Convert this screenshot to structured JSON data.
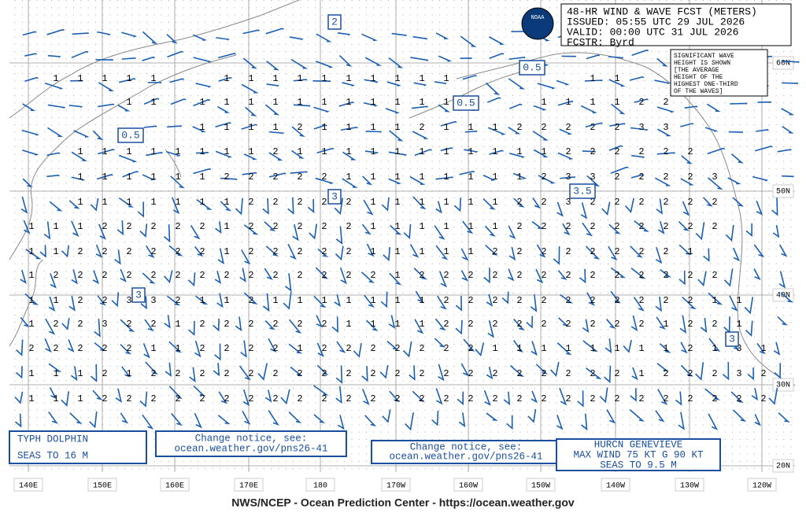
{
  "header": {
    "lines": [
      "48-HR WIND & WAVE FCST (METERS)",
      "ISSUED: 05:55 UTC 29 JUL 2026",
      "VALID:  00:00 UTC 31 JUL 2026",
      "FCSTR:  Byrd"
    ]
  },
  "logo": "NOAA",
  "legend_note": [
    "SIGNIFICANT WAVE",
    "HEIGHT IS SHOWN",
    "[THE AVERAGE",
    "HEIGHT OF THE",
    "HIGHEST ONE-THIRD",
    "OF THE WAVES]"
  ],
  "contour_labels": [
    2,
    0.5,
    0.5,
    0.5,
    3,
    3.5,
    3,
    3
  ],
  "longitudes": [
    "140E",
    "150E",
    "160E",
    "170E",
    "180",
    "170W",
    "160W",
    "150W",
    "140W",
    "130W",
    "120W"
  ],
  "latitudes": [
    "60N",
    "50N",
    "40N",
    "30N",
    "20N"
  ],
  "wave_heights": [
    [
      null,
      1,
      1,
      1,
      1,
      1,
      null,
      null,
      1,
      1,
      1,
      1,
      1,
      1,
      1,
      1,
      1,
      1,
      null,
      null,
      null,
      null,
      null,
      1,
      1,
      null,
      null,
      null,
      null,
      null,
      null
    ],
    [
      null,
      null,
      null,
      null,
      1,
      1,
      null,
      1,
      1,
      1,
      1,
      1,
      1,
      1,
      1,
      1,
      1,
      1,
      1,
      null,
      null,
      1,
      1,
      1,
      1,
      2,
      2,
      null,
      null,
      null,
      null
    ],
    [
      null,
      null,
      null,
      null,
      null,
      null,
      null,
      1,
      1,
      1,
      1,
      2,
      1,
      1,
      1,
      1,
      2,
      1,
      1,
      1,
      2,
      2,
      2,
      2,
      2,
      3,
      3,
      null,
      null,
      null,
      null
    ],
    [
      null,
      null,
      1,
      1,
      1,
      1,
      1,
      1,
      1,
      1,
      2,
      1,
      1,
      1,
      1,
      1,
      1,
      1,
      1,
      1,
      1,
      1,
      2,
      2,
      2,
      2,
      2,
      2,
      null,
      null,
      null
    ],
    [
      null,
      null,
      1,
      1,
      1,
      1,
      1,
      1,
      2,
      2,
      2,
      2,
      2,
      1,
      1,
      1,
      1,
      1,
      1,
      1,
      1,
      2,
      3,
      3,
      2,
      2,
      2,
      2,
      3,
      null,
      null
    ],
    [
      null,
      null,
      1,
      1,
      1,
      1,
      1,
      1,
      1,
      2,
      2,
      2,
      2,
      2,
      1,
      1,
      1,
      1,
      1,
      1,
      2,
      2,
      3,
      2,
      2,
      2,
      2,
      2,
      2,
      null,
      null
    ],
    [
      1,
      1,
      1,
      2,
      2,
      2,
      2,
      2,
      1,
      2,
      2,
      2,
      2,
      2,
      1,
      1,
      1,
      1,
      1,
      1,
      2,
      2,
      2,
      2,
      2,
      2,
      2,
      2,
      2,
      null,
      null
    ],
    [
      1,
      1,
      2,
      2,
      2,
      2,
      2,
      2,
      1,
      2,
      2,
      2,
      2,
      2,
      1,
      1,
      1,
      1,
      1,
      2,
      2,
      2,
      2,
      2,
      2,
      2,
      2,
      1,
      null,
      null,
      null
    ],
    [
      1,
      2,
      2,
      2,
      2,
      2,
      2,
      2,
      2,
      2,
      2,
      2,
      2,
      2,
      2,
      1,
      2,
      2,
      2,
      2,
      2,
      2,
      2,
      2,
      2,
      2,
      2,
      2,
      2,
      null,
      null
    ],
    [
      1,
      1,
      2,
      2,
      3,
      3,
      2,
      1,
      1,
      2,
      1,
      1,
      1,
      1,
      1,
      1,
      1,
      2,
      2,
      2,
      2,
      2,
      2,
      2,
      2,
      2,
      2,
      2,
      1,
      1,
      null
    ],
    [
      1,
      2,
      2,
      3,
      2,
      2,
      1,
      2,
      2,
      2,
      2,
      2,
      2,
      1,
      1,
      1,
      1,
      2,
      2,
      2,
      2,
      2,
      2,
      2,
      2,
      2,
      1,
      2,
      2,
      1,
      null
    ],
    [
      2,
      2,
      2,
      2,
      2,
      1,
      1,
      2,
      2,
      2,
      2,
      1,
      2,
      2,
      2,
      2,
      2,
      2,
      2,
      1,
      1,
      1,
      1,
      1,
      1,
      1,
      1,
      2,
      1,
      3,
      1
    ],
    [
      1,
      1,
      1,
      2,
      1,
      2,
      2,
      2,
      2,
      2,
      2,
      2,
      2,
      2,
      2,
      2,
      2,
      2,
      2,
      2,
      2,
      2,
      2,
      2,
      2,
      1,
      2,
      2,
      2,
      3,
      2
    ],
    [
      1,
      1,
      1,
      2,
      2,
      2,
      2,
      2,
      2,
      2,
      2,
      2,
      2,
      2,
      2,
      2,
      2,
      2,
      2,
      2,
      2,
      2,
      2,
      2,
      2,
      2,
      2,
      2,
      2,
      2,
      2
    ]
  ],
  "notices": {
    "typhoon": [
      "TYPH DOLPHIN",
      "SEAS TO 16 M"
    ],
    "change_notice_1": [
      "Change notice, see:",
      "ocean.weather.gov/pns26-41"
    ],
    "change_notice_2": [
      "Change notice, see:",
      "ocean.weather.gov/pns26-41"
    ],
    "hurricane": [
      "HURCN GENEVIEVE",
      "MAX WIND 75 KT G 90 KT",
      "SEAS TO 9.5 M"
    ]
  },
  "footer": "NWS/NCEP - Ocean Prediction Center - https://ocean.weather.gov"
}
